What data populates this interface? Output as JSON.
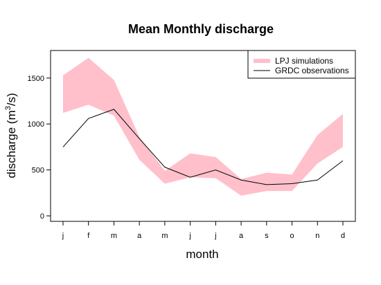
{
  "chart_data": {
    "type": "area",
    "title": "Mean Monthly discharge",
    "xlabel": "month",
    "ylabel_main": "discharge (m",
    "ylabel_sup": "3",
    "ylabel_end": "/s)",
    "categories": [
      "j",
      "f",
      "m",
      "a",
      "m",
      "j",
      "j",
      "a",
      "s",
      "o",
      "n",
      "d"
    ],
    "yticks": [
      0,
      500,
      1000,
      1500
    ],
    "ylim": [
      -60,
      1800
    ],
    "legend_position": "top-right",
    "series": [
      {
        "name": "LPJ simulations",
        "kind": "band",
        "color": "#ffc0cb",
        "lower": [
          1120,
          1210,
          1090,
          610,
          350,
          420,
          410,
          220,
          270,
          270,
          570,
          750
        ],
        "upper": [
          1530,
          1720,
          1480,
          860,
          490,
          680,
          640,
          400,
          470,
          450,
          880,
          1110
        ]
      },
      {
        "name": "GRDC observations",
        "kind": "line",
        "color": "#000000",
        "values": [
          750,
          1060,
          1160,
          840,
          530,
          420,
          500,
          390,
          340,
          350,
          390,
          600
        ]
      }
    ]
  }
}
